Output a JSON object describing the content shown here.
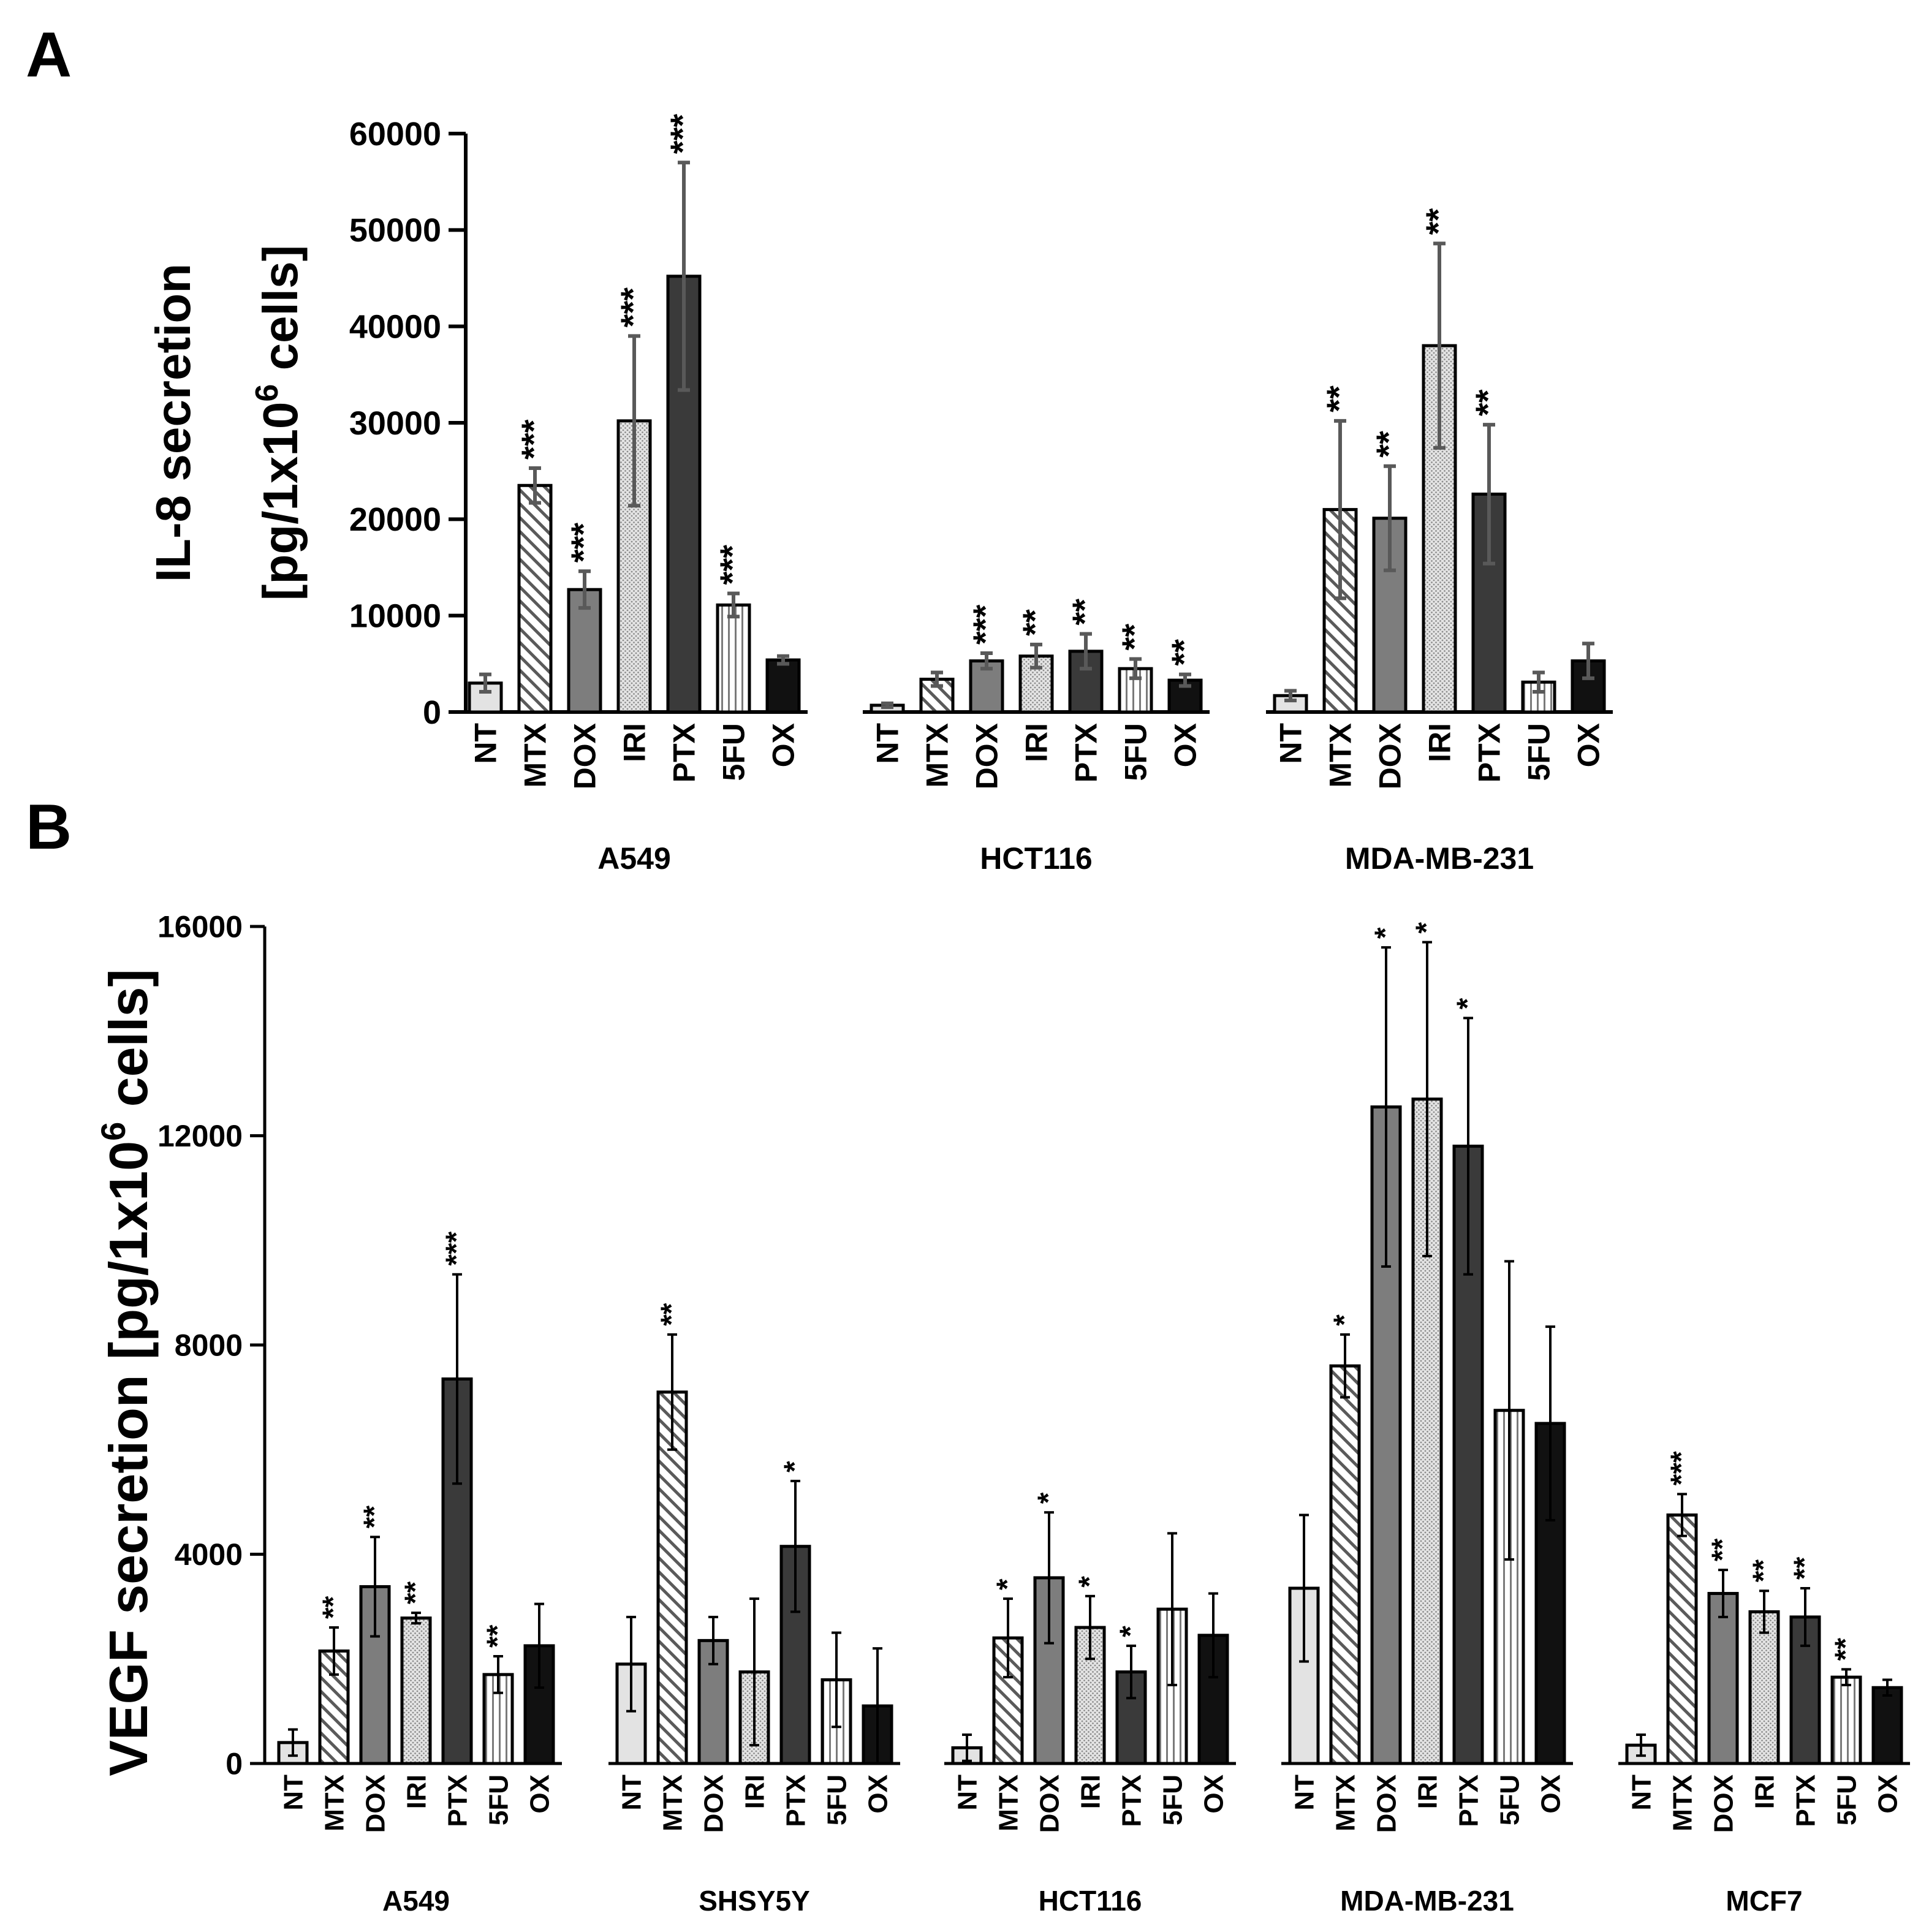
{
  "panels": [
    {
      "letter": "A",
      "chart_data": {
        "type": "bar",
        "ylabel_line1": "IL-8 secretion",
        "ylabel_line2_prefix": "[pg/1x10",
        "ylabel_line2_sup": "6",
        "ylabel_line2_suffix": " cells]",
        "ylim": [
          0,
          60000
        ],
        "yticks": [
          "0",
          "10000",
          "20000",
          "30000",
          "40000",
          "50000",
          "60000"
        ],
        "grid": false,
        "legend": "none",
        "treatments": [
          "NT",
          "MTX",
          "DOX",
          "IRI",
          "PTX",
          "5FU",
          "OX"
        ],
        "groups": [
          {
            "name": "A549",
            "values": [
              3000,
              23500,
              12700,
              30200,
              45200,
              11100,
              5400
            ],
            "errors": [
              900,
              1800,
              1900,
              8800,
              11800,
              1200,
              400
            ],
            "sig": [
              "",
              "***",
              "***",
              "***",
              "***",
              "***",
              ""
            ]
          },
          {
            "name": "HCT116",
            "values": [
              700,
              3400,
              5300,
              5800,
              6300,
              4500,
              3300
            ],
            "errors": [
              200,
              700,
              800,
              1200,
              1800,
              1000,
              600
            ],
            "sig": [
              "",
              "",
              "***",
              "**",
              "**",
              "**",
              "**"
            ]
          },
          {
            "name": "MDA-MB-231",
            "values": [
              1700,
              21000,
              20100,
              38000,
              22600,
              3100,
              5300
            ],
            "errors": [
              500,
              9200,
              5400,
              10600,
              7200,
              1000,
              1800
            ],
            "sig": [
              "",
              "**",
              "**",
              "**",
              "**",
              "",
              ""
            ]
          }
        ]
      }
    },
    {
      "letter": "B",
      "chart_data": {
        "type": "bar",
        "ylabel_prefix": "VEGF secretion [pg/1x10",
        "ylabel_sup": "6",
        "ylabel_suffix": " cells]",
        "ylim": [
          0,
          16000
        ],
        "yticks": [
          "0",
          "4000",
          "8000",
          "12000",
          "16000"
        ],
        "grid": false,
        "legend": "none",
        "treatments": [
          "NT",
          "MTX",
          "DOX",
          "IRI",
          "PTX",
          "5FU",
          "OX"
        ],
        "groups": [
          {
            "name": "A549",
            "values": [
              400,
              2150,
              3380,
              2780,
              7350,
              1700,
              2250
            ],
            "errors": [
              250,
              450,
              950,
              100,
              2000,
              350,
              800
            ],
            "sig": [
              "",
              "**",
              "**",
              "**",
              "***",
              "**",
              ""
            ]
          },
          {
            "name": "SHSY5Y",
            "values": [
              1900,
              7100,
              2350,
              1750,
              4150,
              1600,
              1100
            ],
            "errors": [
              900,
              1100,
              450,
              1400,
              1250,
              900,
              1100
            ],
            "sig": [
              "",
              "**",
              "",
              "",
              "*",
              "",
              ""
            ]
          },
          {
            "name": "HCT116",
            "values": [
              300,
              2400,
              3550,
              2600,
              1750,
              2950,
              2450
            ],
            "errors": [
              250,
              750,
              1250,
              600,
              500,
              1450,
              800
            ],
            "sig": [
              "",
              "*",
              "*",
              "*",
              "*",
              "",
              ""
            ]
          },
          {
            "name": "MDA-MB-231",
            "values": [
              3350,
              7600,
              12550,
              12700,
              11800,
              6750,
              6500
            ],
            "errors": [
              1400,
              600,
              3050,
              3000,
              2450,
              2850,
              1850
            ],
            "sig": [
              "",
              "*",
              "*",
              "*",
              "*",
              "",
              ""
            ]
          },
          {
            "name": "MCF7",
            "values": [
              350,
              4750,
              3250,
              2900,
              2800,
              1650,
              1450
            ],
            "errors": [
              200,
              400,
              450,
              400,
              550,
              150,
              150
            ],
            "sig": [
              "",
              "***",
              "**",
              "**",
              "**",
              "**",
              ""
            ]
          }
        ]
      }
    }
  ]
}
